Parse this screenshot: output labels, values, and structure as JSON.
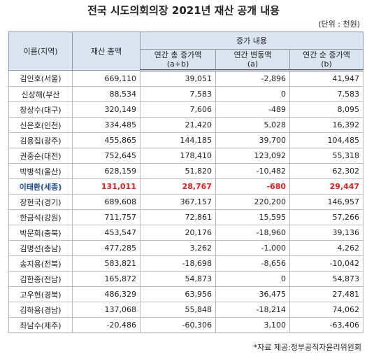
{
  "title": "전국 시도의회의장 2021년 재산 공개 내용",
  "unit": "(단위 : 천원)",
  "table": {
    "header": {
      "name": "이름(지역)",
      "total": "재산 총액",
      "group": "증가 내용",
      "sub": [
        [
          "연간 총 증가액",
          "(a+b)"
        ],
        [
          "연간 변동액",
          "(a)"
        ],
        [
          "연간 순 증가액",
          "(b)"
        ]
      ]
    },
    "rows": [
      [
        "김인호(서울)",
        "669,110",
        "39,051",
        "-2,896",
        "41,947"
      ],
      [
        "신상해(부산",
        "88,534",
        "7,583",
        "0",
        "7,583"
      ],
      [
        "장상수(대구)",
        "320,149",
        "7,606",
        "-489",
        "8,095"
      ],
      [
        "신은호(인천)",
        "334,485",
        "21,420",
        "5,028",
        "16,392"
      ],
      [
        "김용집(광주)",
        "455,865",
        "144,185",
        "39,700",
        "104,485"
      ],
      [
        "권중순(대전)",
        "752,645",
        "178,410",
        "123,092",
        "55,318"
      ],
      [
        "박병석(울산)",
        "628,159",
        "51,820",
        "-10,482",
        "62,302"
      ],
      [
        "이태환(세종)",
        "131,011",
        "28,767",
        "-680",
        "29,447"
      ],
      [
        "장현국(경기)",
        "689,608",
        "367,157",
        "220,200",
        "146,957"
      ],
      [
        "한금석(강원)",
        "711,757",
        "72,861",
        "15,595",
        "57,266"
      ],
      [
        "박문희(충북)",
        "453,547",
        "20,176",
        "-18,960",
        "39,136"
      ],
      [
        "김명선(충남)",
        "477,285",
        "3,262",
        "-1,000",
        "4,262"
      ],
      [
        "송지용(전북)",
        "583,821",
        "-18,698",
        "-8,656",
        "-10,042"
      ],
      [
        "김한종(전남)",
        "165,872",
        "54,873",
        "0",
        "54,873"
      ],
      [
        "고우현(경북)",
        "486,329",
        "63,956",
        "36,475",
        "27,481"
      ],
      [
        "김하용(경남)",
        "137,068",
        "55,848",
        "-18,214",
        "74,062"
      ],
      [
        "좌남수(제주)",
        "-20,486",
        "-60,306",
        "3,100",
        "-63,406"
      ]
    ]
  },
  "source": "*자료 제공:정부공직자윤리위원회"
}
